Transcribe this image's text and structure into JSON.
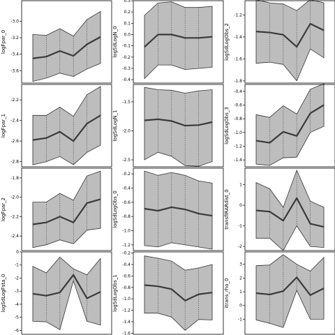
{
  "chart_data": [
    {
      "type": "line",
      "ylabel": "logFpar_0",
      "ylim": [
        -3.75,
        -2.75
      ],
      "yticks": [
        -3.6,
        -3.4,
        -3.2,
        -3.0
      ],
      "tick_labels": [
        "-3.6",
        "-3.4",
        "-3.2",
        "-3.0"
      ],
      "mean": [
        -3.45,
        -3.43,
        -3.36,
        -3.42,
        -3.28,
        -3.19
      ],
      "upper": [
        -3.16,
        -3.17,
        -3.09,
        -3.18,
        -2.98,
        -2.88
      ],
      "lower": [
        -3.73,
        -3.69,
        -3.63,
        -3.67,
        -3.58,
        -3.51
      ]
    },
    {
      "type": "line",
      "ylabel": "logSdLogN_0",
      "ylim": [
        -0.43,
        0.3
      ],
      "yticks": [
        -0.4,
        -0.3,
        -0.2,
        -0.1,
        0.0,
        0.1,
        0.2,
        0.3
      ],
      "tick_labels": [
        "-0.4",
        "-0.3",
        "-0.2",
        "-0.1",
        "0.0",
        "0.1",
        "0.2",
        "0.3"
      ],
      "mean": [
        -0.11,
        0.0,
        0.0,
        -0.03,
        -0.03,
        -0.02
      ],
      "upper": [
        0.17,
        0.28,
        0.29,
        0.24,
        0.24,
        0.25
      ],
      "lower": [
        -0.39,
        -0.27,
        -0.27,
        -0.31,
        -0.3,
        -0.29
      ]
    },
    {
      "type": "line",
      "ylabel": "logSdLogObs_2",
      "ylim": [
        -1.82,
        -1.07
      ],
      "yticks": [
        -1.8,
        -1.6,
        -1.4,
        -1.2
      ],
      "tick_labels": [
        "-1.8",
        "-1.6",
        "-1.4",
        "-1.2"
      ],
      "mean": [
        -1.35,
        -1.36,
        -1.38,
        -1.49,
        -1.28,
        -1.34
      ],
      "upper": [
        -1.06,
        -1.09,
        -1.1,
        -1.16,
        -1.06,
        -1.09
      ],
      "lower": [
        -1.64,
        -1.63,
        -1.65,
        -1.8,
        -1.51,
        -1.59
      ]
    },
    {
      "type": "line",
      "ylabel": "logFpar_1",
      "ylim": [
        -2.85,
        -2.05
      ],
      "yticks": [
        -2.8,
        -2.6,
        -2.4,
        -2.2
      ],
      "tick_labels": [
        "-2.8",
        "-2.6",
        "-2.4",
        "-2.2"
      ],
      "mean": [
        -2.59,
        -2.57,
        -2.51,
        -2.6,
        -2.43,
        -2.35
      ],
      "upper": [
        -2.35,
        -2.35,
        -2.27,
        -2.36,
        -2.15,
        -2.07
      ],
      "lower": [
        -2.83,
        -2.8,
        -2.75,
        -2.83,
        -2.71,
        -2.64
      ]
    },
    {
      "type": "line",
      "ylabel": "logSdLogN_1",
      "ylim": [
        -2.62,
        -1.2
      ],
      "yticks": [
        -2.5,
        -2.0,
        -1.5
      ],
      "tick_labels": [
        "-2.5",
        "-2.0",
        "-1.5"
      ],
      "mean": [
        -1.82,
        -1.8,
        -1.83,
        -1.91,
        -1.9,
        -1.85
      ],
      "upper": [
        -1.25,
        -1.29,
        -1.3,
        -1.35,
        -1.31,
        -1.29
      ],
      "lower": [
        -2.5,
        -2.37,
        -2.44,
        -2.6,
        -2.61,
        -2.53
      ]
    },
    {
      "type": "line",
      "ylabel": "logSdLogObs_3",
      "ylim": [
        -1.5,
        -0.3
      ],
      "yticks": [
        -1.4,
        -1.2,
        -1.0,
        -0.8,
        -0.6,
        -0.4
      ],
      "tick_labels": [
        "-1.4",
        "-1.2",
        "-1.0",
        "-0.8",
        "-0.6",
        "-0.4"
      ],
      "mean": [
        -1.12,
        -1.15,
        -0.99,
        -1.05,
        -0.72,
        -0.6
      ],
      "upper": [
        -0.74,
        -0.78,
        -0.61,
        -0.73,
        -0.37,
        -0.29
      ],
      "lower": [
        -1.46,
        -1.48,
        -1.37,
        -1.36,
        -1.0,
        -0.91
      ]
    },
    {
      "type": "line",
      "ylabel": "logFpar_2",
      "ylim": [
        -2.55,
        -1.7
      ],
      "yticks": [
        -2.4,
        -2.2,
        -2.0,
        -1.8
      ],
      "tick_labels": [
        "-2.4",
        "-2.2",
        "-2.0",
        "-1.8"
      ],
      "mean": [
        -2.28,
        -2.26,
        -2.2,
        -2.26,
        -2.06,
        -2.02
      ],
      "upper": [
        -2.05,
        -2.05,
        -1.96,
        -2.03,
        -1.78,
        -1.73
      ],
      "lower": [
        -2.52,
        -2.49,
        -2.44,
        -2.48,
        -2.34,
        -2.32
      ]
    },
    {
      "type": "line",
      "ylabel": "logSdLogObs_0",
      "ylim": [
        -1.28,
        -0.12
      ],
      "yticks": [
        -1.2,
        -1.0,
        -0.8,
        -0.6,
        -0.4,
        -0.2
      ],
      "tick_labels": [
        "-1.2",
        "-1.0",
        "-0.8",
        "-0.6",
        "-0.4",
        "-0.2"
      ],
      "mean": [
        -0.69,
        -0.72,
        -0.67,
        -0.7,
        -0.76,
        -0.79
      ],
      "upper": [
        -0.16,
        -0.22,
        -0.18,
        -0.22,
        -0.3,
        -0.33
      ],
      "lower": [
        -1.21,
        -1.23,
        -1.17,
        -1.2,
        -1.23,
        -1.26
      ]
    },
    {
      "type": "line",
      "ylabel": "transfIRARdist_0",
      "ylim": [
        -2.2,
        1.8
      ],
      "yticks": [
        -2,
        -1,
        0,
        1
      ],
      "tick_labels": [
        "-2",
        "-1",
        "0",
        "1"
      ],
      "mean": [
        -0.25,
        -0.31,
        -0.75,
        0.35,
        -0.9,
        -1.05
      ],
      "upper": [
        1.1,
        0.8,
        -0.1,
        1.7,
        0.2,
        -0.1
      ],
      "lower": [
        -1.6,
        -1.6,
        -2.2,
        -1.0,
        -2.0,
        -2.05
      ]
    },
    {
      "type": "line",
      "ylabel": "logSdLogFsta_0",
      "ylim": [
        -6.3,
        0.0
      ],
      "yticks": [
        -6,
        -5,
        -4,
        -3,
        -2,
        -1,
        0
      ],
      "tick_labels": [
        "-6",
        "-5",
        "-4",
        "-3",
        "-2",
        "-1",
        "0"
      ],
      "mean": [
        -3.2,
        -3.35,
        -3.1,
        -1.75,
        -3.55,
        -3.05
      ],
      "upper": [
        -1.1,
        -1.6,
        -0.4,
        -1.3,
        -1.75,
        -0.5
      ],
      "lower": [
        -5.3,
        -5.35,
        -5.95,
        -2.2,
        -5.3,
        -5.6
      ]
    },
    {
      "type": "line",
      "ylabel": "logSdLogObs_1",
      "ylim": [
        -1.62,
        -0.18
      ],
      "yticks": [
        -1.6,
        -1.4,
        -1.2,
        -1.0,
        -0.8,
        -0.6,
        -0.4,
        -0.2
      ],
      "tick_labels": [
        "-1.6",
        "-1.4",
        "-1.2",
        "-1.0",
        "-0.8",
        "-0.6",
        "-0.4",
        "-0.2"
      ],
      "mean": [
        -0.76,
        -0.78,
        -0.83,
        -1.03,
        -0.92,
        -0.89
      ],
      "upper": [
        -0.25,
        -0.29,
        -0.34,
        -0.5,
        -0.46,
        -0.4
      ],
      "lower": [
        -1.25,
        -1.25,
        -1.32,
        -1.55,
        -1.36,
        -1.37
      ]
    },
    {
      "type": "line",
      "ylabel": "itrans_rho_0",
      "ylim": [
        -2.1,
        3.9
      ],
      "yticks": [
        -1,
        0,
        1,
        2,
        3
      ],
      "tick_labels": [
        "-1",
        "0",
        "1",
        "2",
        "3"
      ],
      "mean": [
        0.9,
        0.8,
        1.05,
        2.05,
        0.75,
        1.25
      ],
      "upper": [
        2.9,
        2.95,
        3.7,
        3.0,
        2.5,
        3.5
      ],
      "lower": [
        -1.05,
        -1.3,
        -1.6,
        1.1,
        -1.0,
        -1.0
      ]
    }
  ]
}
